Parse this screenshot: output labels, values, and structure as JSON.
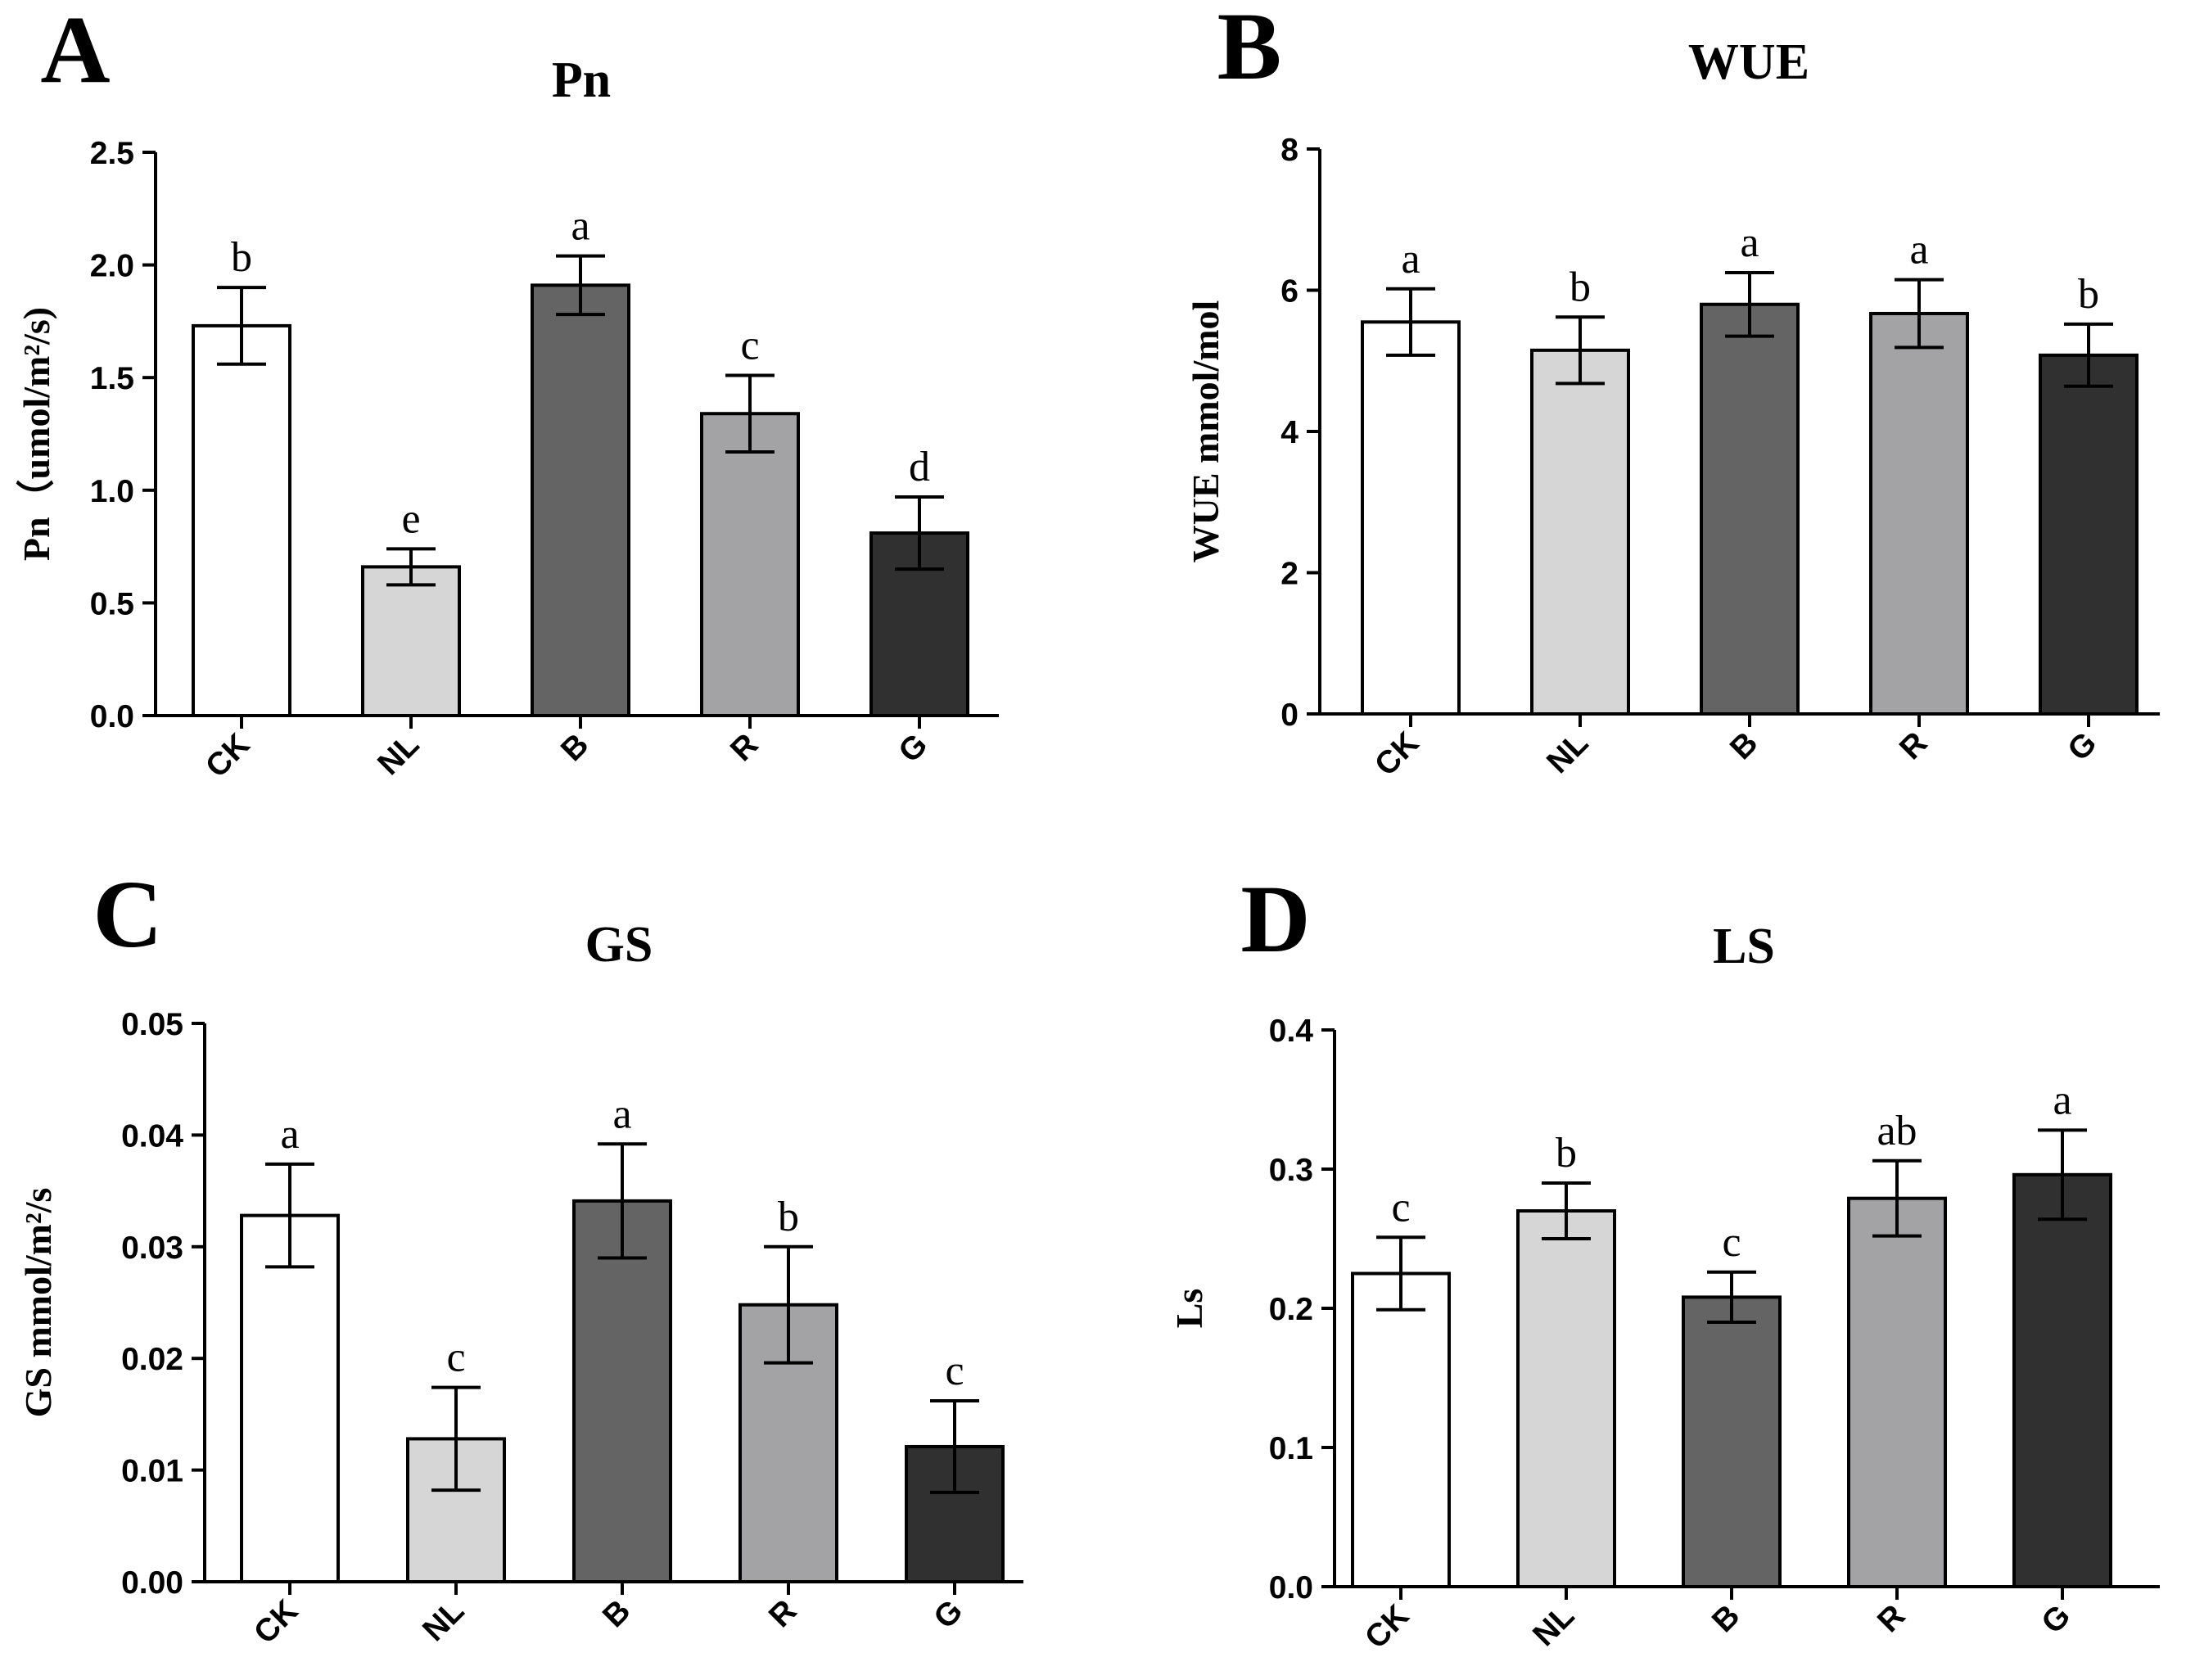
{
  "colors": {
    "CK": "#ffffff",
    "NL": "#d6d6d6",
    "B": "#646464",
    "R": "#a3a3a5",
    "G": "#303030",
    "stroke": "#000000"
  },
  "chart_data": [
    {
      "type": "bar",
      "panel": "A",
      "title": "Pn",
      "ylabel": "Pn（umol/m²/s)",
      "xlabel": "",
      "categories": [
        "CK",
        "NL",
        "B",
        "R",
        "G"
      ],
      "values": [
        1.73,
        0.66,
        1.91,
        1.34,
        0.81
      ],
      "errors": [
        0.17,
        0.08,
        0.13,
        0.17,
        0.16
      ],
      "significance": [
        "b",
        "e",
        "a",
        "c",
        "d"
      ],
      "ylim": [
        0,
        2.5
      ],
      "yticks": [
        "0.0",
        "0.5",
        "1.0",
        "1.5",
        "2.0",
        "2.5"
      ]
    },
    {
      "type": "bar",
      "panel": "B",
      "title": "WUE",
      "ylabel": "WUE mmol/mol",
      "xlabel": "",
      "categories": [
        "CK",
        "NL",
        "B",
        "R",
        "G"
      ],
      "values": [
        5.55,
        5.15,
        5.8,
        5.67,
        5.08
      ],
      "errors": [
        0.47,
        0.47,
        0.45,
        0.48,
        0.44
      ],
      "significance": [
        "a",
        "b",
        "a",
        "a",
        "b"
      ],
      "ylim": [
        0,
        8
      ],
      "yticks": [
        "0",
        "2",
        "4",
        "6",
        "8"
      ]
    },
    {
      "type": "bar",
      "panel": "C",
      "title": "GS",
      "ylabel": "GS mmol/m²/s",
      "xlabel": "",
      "categories": [
        "CK",
        "NL",
        "B",
        "R",
        "G"
      ],
      "values": [
        0.0328,
        0.0128,
        0.0341,
        0.0248,
        0.0121
      ],
      "errors": [
        0.0046,
        0.0046,
        0.0051,
        0.0052,
        0.0041
      ],
      "significance": [
        "a",
        "c",
        "a",
        "b",
        "c"
      ],
      "ylim": [
        0,
        0.05
      ],
      "yticks": [
        "0.00",
        "0.01",
        "0.02",
        "0.03",
        "0.04",
        "0.05"
      ]
    },
    {
      "type": "bar",
      "panel": "D",
      "title": "LS",
      "ylabel": "Ls",
      "xlabel": "",
      "categories": [
        "CK",
        "NL",
        "B",
        "R",
        "G"
      ],
      "values": [
        0.225,
        0.27,
        0.208,
        0.279,
        0.296
      ],
      "errors": [
        0.026,
        0.02,
        0.018,
        0.027,
        0.032
      ],
      "significance": [
        "c",
        "b",
        "c",
        "ab",
        "a"
      ],
      "ylim": [
        0,
        0.4
      ],
      "yticks": [
        "0.0",
        "0.1",
        "0.2",
        "0.3",
        "0.4"
      ]
    }
  ]
}
